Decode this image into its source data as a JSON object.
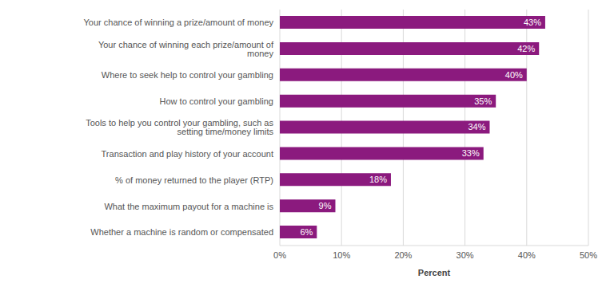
{
  "chart_data": {
    "type": "bar",
    "orientation": "horizontal",
    "categories": [
      "Your chance of winning a prize/amount of money",
      "Your chance of winning each prize/amount of money",
      "Where to seek help to control your gambling",
      "How to control your gambling",
      "Tools to help you control your gambling, such as setting time/money limits",
      "Transaction and play history of your account",
      "% of money returned to the player (RTP)",
      "What the maximum payout for a machine is",
      "Whether a machine is random or compensated"
    ],
    "values": [
      43,
      42,
      40,
      35,
      34,
      33,
      18,
      9,
      6
    ],
    "value_labels": [
      "43%",
      "42%",
      "40%",
      "35%",
      "34%",
      "33%",
      "18%",
      "9%",
      "6%"
    ],
    "data_labels": true,
    "color": "#8b1a7e",
    "xlabel": "Percent",
    "xlim": [
      0,
      50
    ],
    "xticks": [
      {
        "value": 0,
        "label": "0%"
      },
      {
        "value": 10,
        "label": "10%"
      },
      {
        "value": 20,
        "label": "20%"
      },
      {
        "value": 30,
        "label": "30%"
      },
      {
        "value": 40,
        "label": "40%"
      },
      {
        "value": 50,
        "label": "50%"
      }
    ],
    "grid": true
  }
}
